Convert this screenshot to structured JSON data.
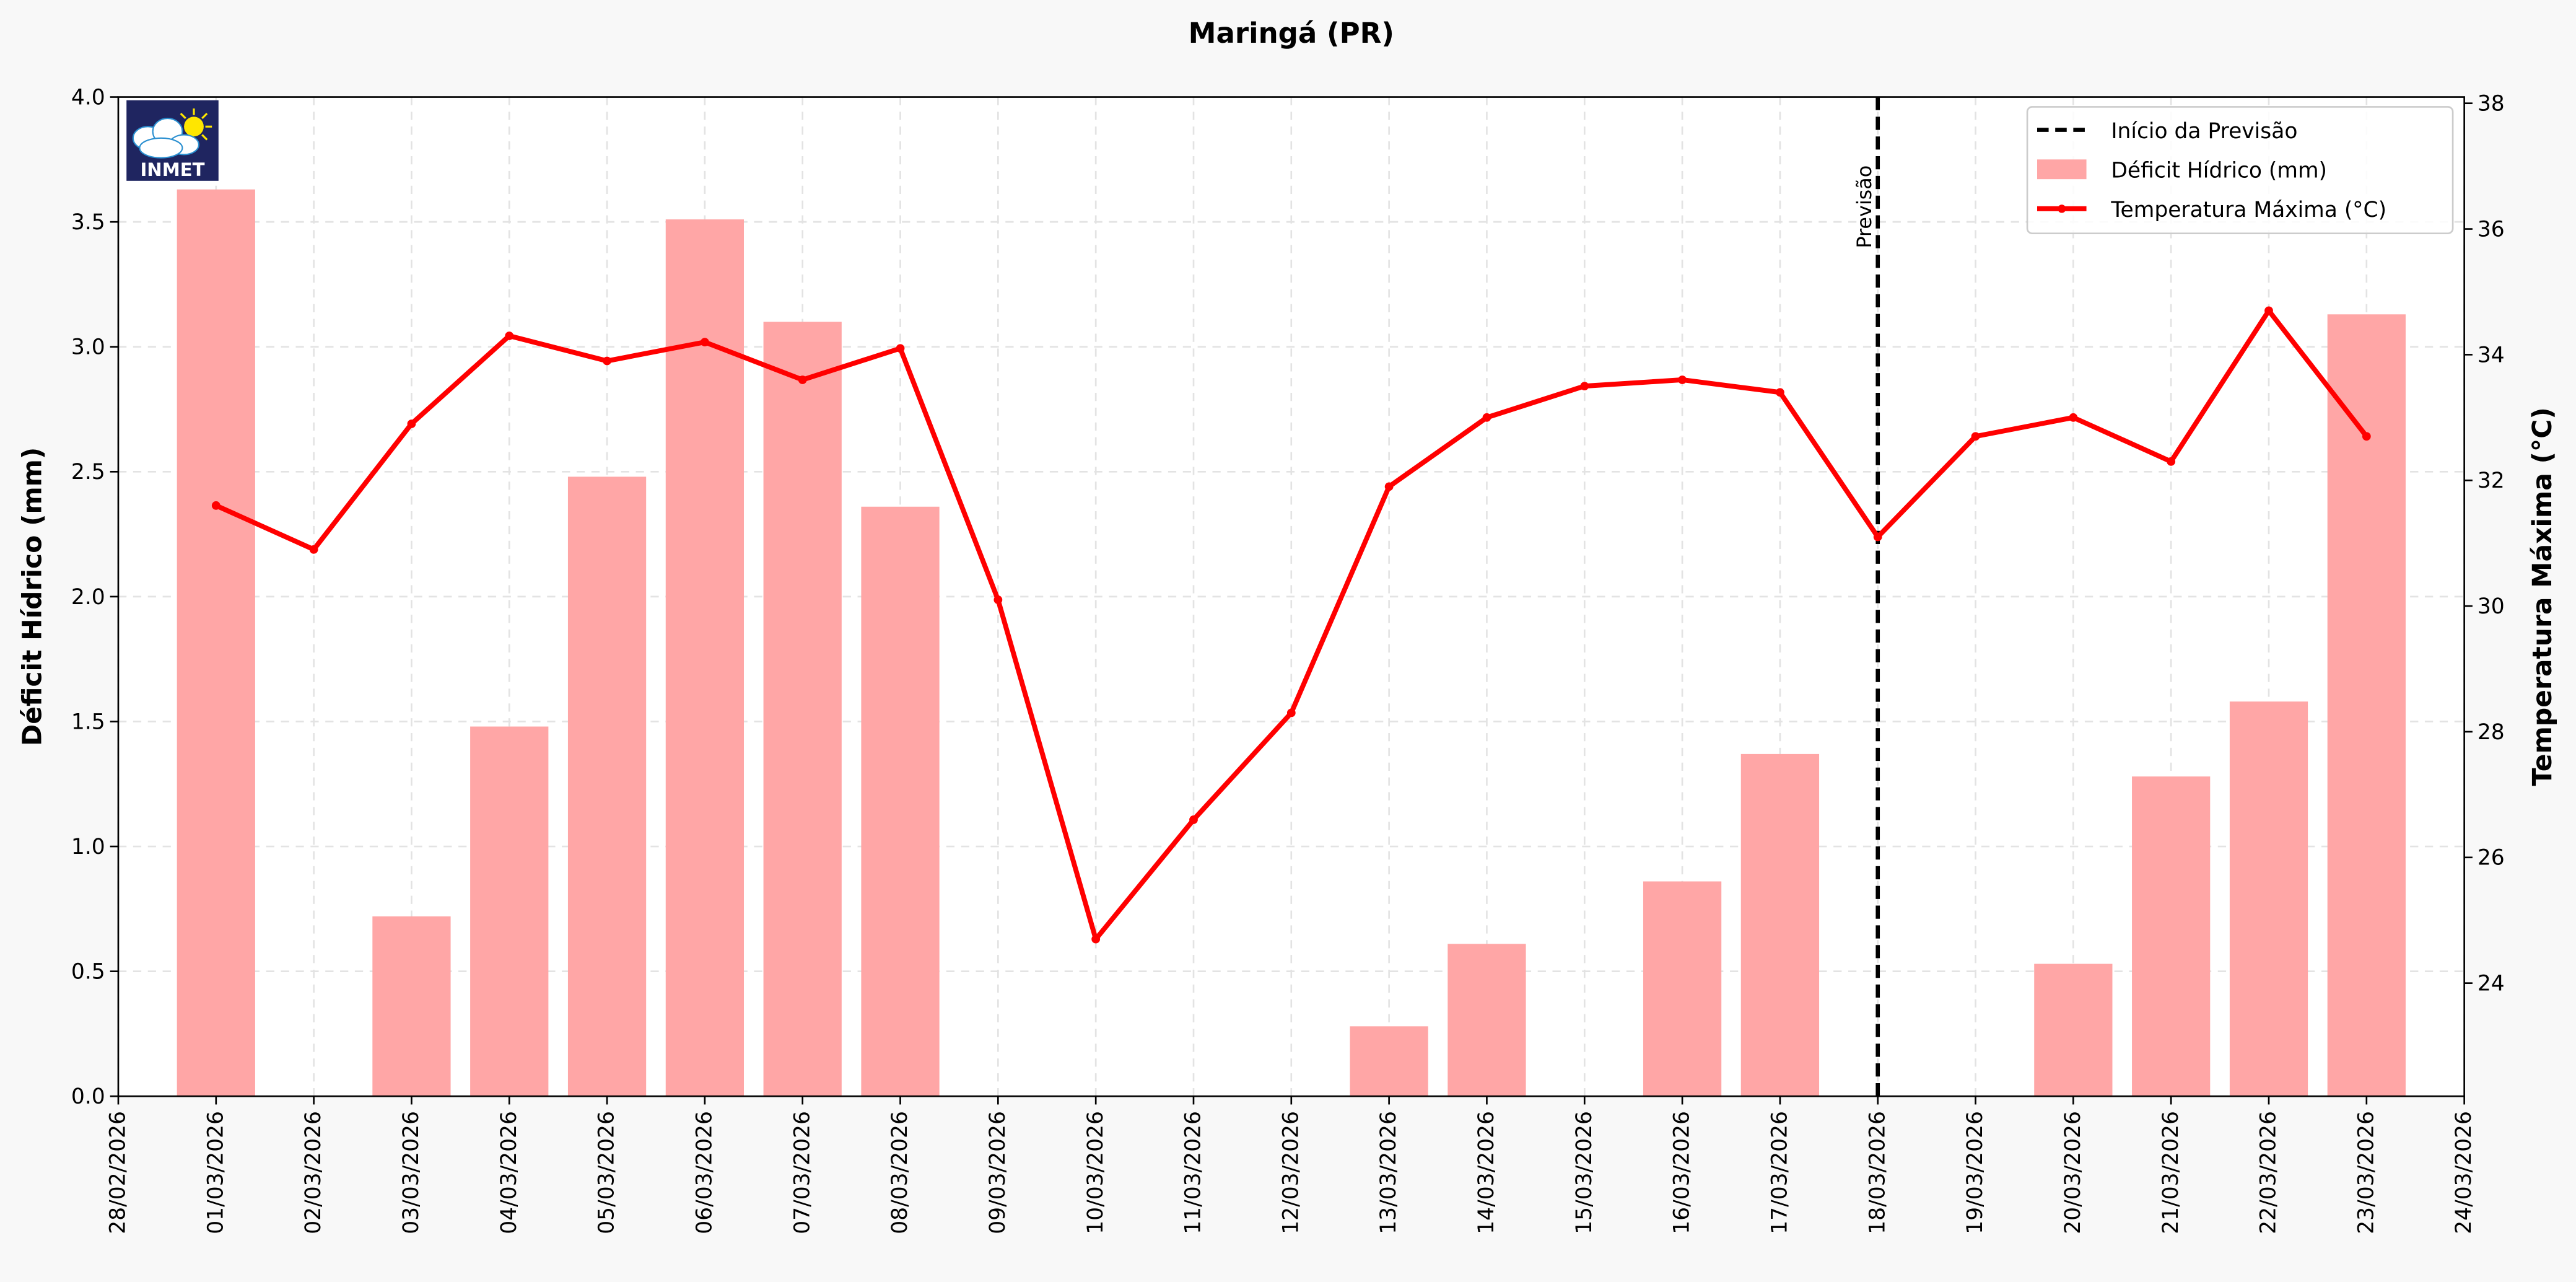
{
  "chart_data": {
    "type": "bar+line",
    "title": "Maringá (PR)",
    "xlabel": "",
    "ylabel_left": "Déficit Hídrico (mm)",
    "ylabel_right": "Temperatura Máxima (°C)",
    "ylim_left": [
      0,
      4.0
    ],
    "ylim_right": [
      22.2,
      38.1
    ],
    "left_ticks": [
      "0.0",
      "0.5",
      "1.0",
      "1.5",
      "2.0",
      "2.5",
      "3.0",
      "3.5",
      "4.0"
    ],
    "right_ticks": [
      "24",
      "26",
      "28",
      "30",
      "32",
      "34",
      "36",
      "38"
    ],
    "x_ticks": [
      "28/02/2026",
      "01/03/2026",
      "02/03/2026",
      "03/03/2026",
      "04/03/2026",
      "05/03/2026",
      "06/03/2026",
      "07/03/2026",
      "08/03/2026",
      "09/03/2026",
      "10/03/2026",
      "11/03/2026",
      "12/03/2026",
      "13/03/2026",
      "14/03/2026",
      "15/03/2026",
      "16/03/2026",
      "17/03/2026",
      "18/03/2026",
      "19/03/2026",
      "20/03/2026",
      "21/03/2026",
      "22/03/2026",
      "23/03/2026",
      "24/03/2026"
    ],
    "grid": true,
    "legend_position": "top-right",
    "series": [
      {
        "name": "Déficit Hídrico (mm)",
        "kind": "bar",
        "color": "#ff9999",
        "axis": "left",
        "values": [
          3.63,
          0,
          0.72,
          1.48,
          2.48,
          3.51,
          3.1,
          2.36,
          0,
          0,
          0,
          0,
          0.28,
          0.61,
          0,
          0.86,
          1.37,
          0,
          0,
          0.53,
          1.28,
          1.58,
          3.13
        ]
      },
      {
        "name": "Temperatura Máxima (°C)",
        "kind": "line",
        "color": "#ff0000",
        "axis": "right",
        "values": [
          31.6,
          30.9,
          32.9,
          34.3,
          33.9,
          34.2,
          33.6,
          34.1,
          30.1,
          24.7,
          26.6,
          28.3,
          31.9,
          33.0,
          33.5,
          33.6,
          33.4,
          31.1,
          32.7,
          33.0,
          32.3,
          34.7,
          32.7
        ]
      }
    ],
    "bar_dates_start": "01/03/2026",
    "forecast_line": {
      "name": "Início da Previsão",
      "date": "18/03/2026",
      "label": "Previsão",
      "color": "#000000"
    },
    "logo_text": "INMET"
  }
}
